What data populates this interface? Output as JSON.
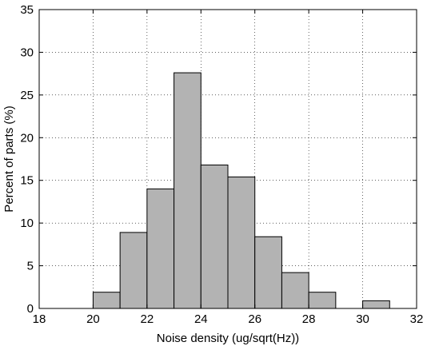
{
  "chart_data": {
    "type": "bar",
    "title": "",
    "xlabel": "Noise density (ug/sqrt(Hz))",
    "ylabel": "Percent of parts (%)",
    "xlim": [
      18,
      32
    ],
    "ylim": [
      0,
      35
    ],
    "xticks": [
      "18",
      "20",
      "22",
      "24",
      "26",
      "28",
      "30",
      "32"
    ],
    "yticks": [
      "0",
      "5",
      "10",
      "15",
      "20",
      "25",
      "30",
      "35"
    ],
    "grid": true,
    "bar_color": "#b3b3b3",
    "bin_width": 1.0,
    "bins": [
      {
        "x": 20.5,
        "value": 1.9
      },
      {
        "x": 21.5,
        "value": 8.9
      },
      {
        "x": 22.5,
        "value": 14.0
      },
      {
        "x": 23.5,
        "value": 27.6
      },
      {
        "x": 24.5,
        "value": 16.8
      },
      {
        "x": 25.5,
        "value": 15.4
      },
      {
        "x": 26.5,
        "value": 8.4
      },
      {
        "x": 27.5,
        "value": 4.2
      },
      {
        "x": 28.5,
        "value": 1.9
      },
      {
        "x": 29.5,
        "value": 0.0
      },
      {
        "x": 30.5,
        "value": 0.9
      }
    ]
  }
}
